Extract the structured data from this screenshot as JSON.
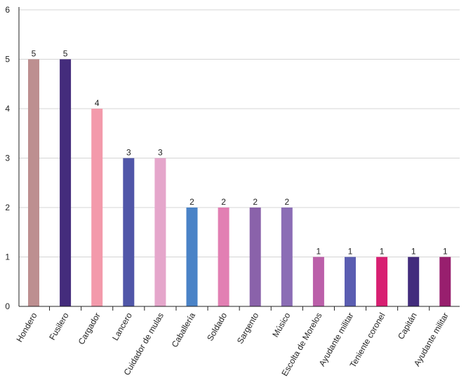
{
  "chart_data": {
    "type": "bar",
    "title": "",
    "xlabel": "",
    "ylabel": "",
    "ylim": [
      0,
      6
    ],
    "yticks": [
      0,
      1,
      2,
      3,
      4,
      5,
      6
    ],
    "grid": true,
    "categories": [
      "Hondero",
      "Fusilero",
      "Cargador",
      "Lancero",
      "Cuidador de mulas",
      "Caballería",
      "Soldado",
      "Sargento",
      "Músico",
      "Escolta de Morelos",
      "Ayudante militar",
      "Teniente coronel",
      "Capitán",
      "Ayudante militar"
    ],
    "values": [
      5,
      5,
      4,
      3,
      3,
      2,
      2,
      2,
      2,
      1,
      1,
      1,
      1,
      1
    ],
    "colors": [
      "#bd8f90",
      "#442c7c",
      "#f39aab",
      "#5056a8",
      "#e5a6cb",
      "#4a83c7",
      "#e27fb3",
      "#8a62aa",
      "#8b6db5",
      "#bb5fa9",
      "#5a5db1",
      "#d81f72",
      "#432c7d",
      "#981f6e"
    ]
  }
}
